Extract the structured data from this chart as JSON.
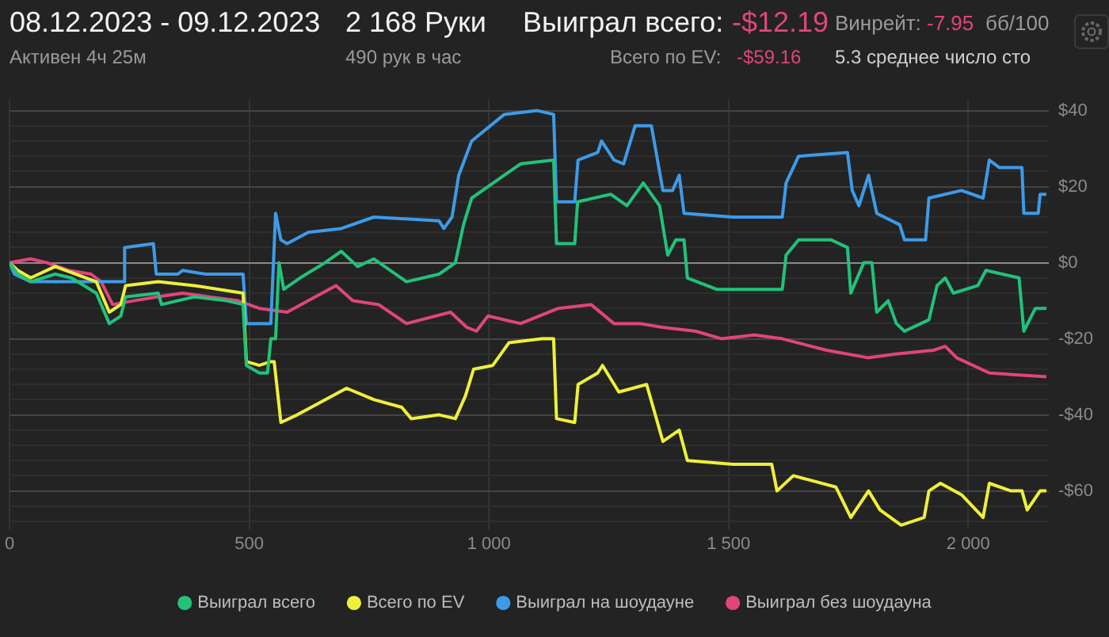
{
  "chart_data": {
    "type": "line",
    "title": "08.12.2023 - 09.12.2023",
    "subtitle": "Активен 4ч 25м",
    "annotations": [
      "2 168 Руки",
      "490 рук в час",
      "Выиграл всего:",
      "-$12.19",
      "Всего по EV:",
      "-$59.16",
      "Винрейт:",
      "-7.95",
      "бб/100",
      "5.3 среднее число сто"
    ],
    "xlim": [
      0,
      2168
    ],
    "xticks": [
      0,
      500,
      {
        "value": 1000,
        "label": "1 000"
      },
      {
        "value": 1500,
        "label": "1 500"
      },
      {
        "value": 2000,
        "label": "2 000"
      }
    ],
    "ylim": [
      -70,
      43
    ],
    "yticks": [
      {
        "value": -68,
        "label": null
      },
      {
        "value": -64,
        "label": null
      },
      {
        "value": -60,
        "label": "-$60"
      },
      {
        "value": -56,
        "label": null
      },
      {
        "value": -52,
        "label": null
      },
      {
        "value": -48,
        "label": null
      },
      {
        "value": -44,
        "label": null
      },
      {
        "value": -40,
        "label": "-$40"
      },
      {
        "value": -36,
        "label": null
      },
      {
        "value": -32,
        "label": null
      },
      {
        "value": -28,
        "label": null
      },
      {
        "value": -24,
        "label": null
      },
      {
        "value": -20,
        "label": "-$20"
      },
      {
        "value": -16,
        "label": null
      },
      {
        "value": -12,
        "label": null
      },
      {
        "value": -8,
        "label": null
      },
      {
        "value": -4,
        "label": null
      },
      {
        "value": 0,
        "label": "$0"
      },
      {
        "value": 4,
        "label": null
      },
      {
        "value": 8,
        "label": null
      },
      {
        "value": 12,
        "label": null
      },
      {
        "value": 16,
        "label": null
      },
      {
        "value": 20,
        "label": "$20"
      },
      {
        "value": 24,
        "label": null
      },
      {
        "value": 28,
        "label": null
      },
      {
        "value": 32,
        "label": null
      },
      {
        "value": 36,
        "label": null
      },
      {
        "value": 40,
        "label": "$40"
      }
    ],
    "grid": true,
    "legend": "bottom",
    "marker": "none",
    "line_style": "solid",
    "series": [
      {
        "name": "Выиграл всего",
        "color": "#21c27a",
        "x": [
          0,
          17,
          44,
          95,
          129,
          181,
          208,
          232,
          242,
          310,
          317,
          385,
          453,
          487,
          494,
          521,
          538,
          545,
          555,
          562,
          572,
          606,
          658,
          692,
          726,
          760,
          828,
          896,
          930,
          947,
          964,
          998,
          1032,
          1066,
          1135,
          1141,
          1179,
          1185,
          1254,
          1288,
          1322,
          1356,
          1373,
          1390,
          1407,
          1414,
          1475,
          1612,
          1620,
          1646,
          1714,
          1748,
          1755,
          1782,
          1799,
          1809,
          1833,
          1850,
          1867,
          1918,
          1935,
          1952,
          1969,
          2020,
          2037,
          2071,
          2106,
          2116,
          2140,
          2163
        ],
        "values": [
          0,
          -3,
          -5,
          -3,
          -4,
          -8,
          -16,
          -14,
          -9,
          -8,
          -11,
          -9,
          -10,
          -11,
          -27,
          -29,
          -29,
          -20,
          -20,
          0,
          -7,
          -4,
          0,
          3,
          -1,
          1,
          -5,
          -3,
          0,
          10,
          17,
          20,
          23,
          26,
          27,
          5,
          5,
          16,
          18,
          15,
          21,
          15,
          2,
          6,
          6,
          -4,
          -7,
          -7,
          2,
          6,
          6,
          4,
          -8,
          0,
          0,
          -13,
          -10,
          -16,
          -18,
          -15,
          -6,
          -4,
          -8,
          -6,
          -2,
          -3,
          -4,
          -18,
          -12,
          -12
        ]
      },
      {
        "name": "Всего по EV",
        "color": "#eef03a",
        "x": [
          0,
          17,
          44,
          95,
          181,
          208,
          232,
          242,
          310,
          385,
          487,
          494,
          521,
          545,
          552,
          566,
          600,
          703,
          760,
          818,
          838,
          896,
          930,
          951,
          968,
          1008,
          1042,
          1111,
          1135,
          1141,
          1179,
          1186,
          1227,
          1237,
          1271,
          1329,
          1363,
          1397,
          1414,
          1509,
          1590,
          1601,
          1635,
          1724,
          1755,
          1792,
          1816,
          1860,
          1908,
          1918,
          1942,
          1986,
          2031,
          2044,
          2089,
          2112,
          2123,
          2150,
          2163
        ],
        "values": [
          0,
          -2,
          -4,
          -1,
          -5,
          -13,
          -11,
          -6,
          -5,
          -6,
          -8,
          -26,
          -27,
          -26,
          -26,
          -42,
          -40,
          -33,
          -36,
          -38,
          -41,
          -40,
          -41,
          -35,
          -28,
          -27,
          -21,
          -20,
          -20,
          -41,
          -42,
          -32,
          -29,
          -27,
          -34,
          -32,
          -47,
          -44,
          -52,
          -53,
          -53,
          -60,
          -56,
          -59,
          -67,
          -60,
          -65,
          -69,
          -67,
          -60,
          -58,
          -61,
          -67,
          -58,
          -60,
          -60,
          -65,
          -60,
          -60
        ]
      },
      {
        "name": "Выиграл на шоудауне",
        "color": "#3d9be9",
        "x": [
          0,
          10,
          44,
          238,
          240,
          300,
          306,
          351,
          361,
          409,
          487,
          494,
          545,
          555,
          566,
          579,
          623,
          692,
          760,
          896,
          906,
          923,
          937,
          964,
          1032,
          1101,
          1135,
          1141,
          1179,
          1186,
          1227,
          1235,
          1261,
          1281,
          1305,
          1339,
          1363,
          1383,
          1397,
          1407,
          1509,
          1612,
          1620,
          1646,
          1748,
          1758,
          1772,
          1792,
          1809,
          1857,
          1867,
          1911,
          1918,
          1986,
          2031,
          2044,
          2065,
          2112,
          2116,
          2146,
          2150,
          2163
        ],
        "values": [
          0,
          -3,
          -5,
          -5,
          4,
          5,
          -3,
          -3,
          -2,
          -3,
          -3,
          -16,
          -16,
          13,
          6,
          5,
          8,
          9,
          12,
          11,
          9,
          12,
          23,
          32,
          39,
          40,
          39,
          16,
          16,
          27,
          29,
          32,
          27,
          26,
          36,
          36,
          19,
          19,
          23,
          13,
          12,
          12,
          21,
          28,
          29,
          19,
          15,
          23,
          13,
          10,
          6,
          6,
          17,
          19,
          17,
          27,
          25,
          25,
          13,
          13,
          18,
          18
        ]
      },
      {
        "name": "Выиграл без шоудауна",
        "color": "#e0457b",
        "x": [
          0,
          44,
          78,
          123,
          170,
          191,
          215,
          259,
          307,
          361,
          477,
          521,
          579,
          623,
          681,
          716,
          770,
          828,
          920,
          954,
          974,
          998,
          1066,
          1145,
          1213,
          1261,
          1315,
          1363,
          1431,
          1486,
          1554,
          1612,
          1704,
          1792,
          1850,
          1928,
          1952,
          1976,
          2044,
          2163
        ],
        "values": [
          0,
          1,
          0,
          -2,
          -3,
          -5,
          -11,
          -10,
          -9,
          -8,
          -10,
          -12,
          -13,
          -10,
          -6,
          -10,
          -11,
          -16,
          -13,
          -17,
          -18,
          -14,
          -16,
          -12,
          -11,
          -16,
          -16,
          -17,
          -18,
          -20,
          -19,
          -20,
          -23,
          -25,
          -24,
          -23,
          -22,
          -25,
          -29,
          -30
        ]
      }
    ]
  }
}
